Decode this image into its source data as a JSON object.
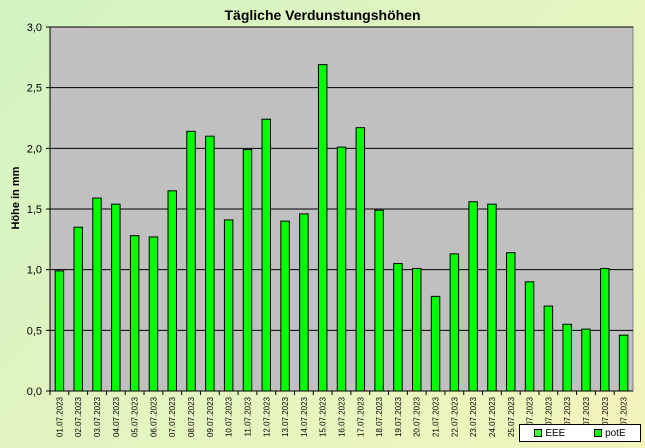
{
  "chart_data": {
    "type": "bar",
    "title": "Tägliche Verdunstungshöhen",
    "xlabel": "",
    "ylabel": "Höhe in mm",
    "ylim": [
      0,
      3
    ],
    "yticks": [
      "0,0",
      "0,5",
      "1,0",
      "1,5",
      "2,0",
      "2,5",
      "3,0"
    ],
    "grid": true,
    "legend_position": "bottom-right",
    "categories": [
      "01.07.2023",
      "02.07.2023",
      "03.07.2023",
      "04.07.2023",
      "05.07.2023",
      "06.07.2023",
      "07.07.2023",
      "08.07.2023",
      "09.07.2023",
      "10.07.2023",
      "11.07.2023",
      "12.07.2023",
      "13.07.2023",
      "14.07.2023",
      "15.07.2023",
      "16.07.2023",
      "17.07.2023",
      "18.07.2023",
      "19.07.2023",
      "20.07.2023",
      "21.07.2023",
      "22.07.2023",
      "23.07.2023",
      "24.07.2023",
      "25.07.2023",
      "26.07.2023",
      "27.07.2023",
      "28.07.2023",
      "29.07.2023",
      "30.07.2023",
      "31.07.2023"
    ],
    "series": [
      {
        "name": "EEE",
        "color": "#33ff33",
        "values": [
          0,
          0,
          0,
          0,
          0,
          0,
          0,
          0,
          0,
          0,
          0,
          0,
          0,
          0,
          0,
          0,
          0,
          0,
          0,
          0,
          0,
          0,
          0,
          0,
          0,
          0,
          0,
          0,
          0,
          0,
          0
        ]
      },
      {
        "name": "potE",
        "color": "#00ff00",
        "values": [
          0.99,
          1.35,
          1.59,
          1.54,
          1.28,
          1.27,
          1.65,
          2.14,
          2.1,
          1.41,
          1.99,
          2.24,
          1.4,
          1.46,
          2.69,
          2.01,
          2.17,
          1.49,
          1.05,
          1.01,
          0.78,
          1.13,
          1.56,
          1.54,
          1.14,
          0.9,
          0.7,
          0.55,
          0.51,
          1.01,
          0.46
        ]
      }
    ],
    "colors": {
      "plot_bg": "#c0c0c0",
      "bar": "#00ff00",
      "bar_edge": "#000000",
      "grid": "#000000"
    }
  }
}
